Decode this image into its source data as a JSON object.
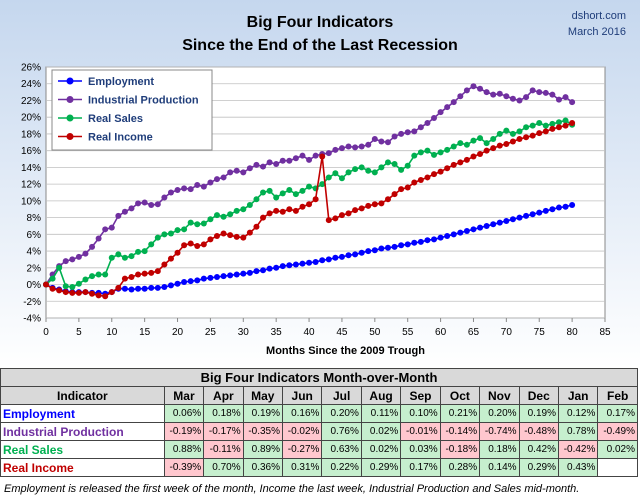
{
  "chart_data": {
    "type": "line",
    "title": "Big Four Indicators",
    "subtitle": "Since the End of the Last Recession",
    "xlabel": "Months Since the 2009 Trough",
    "ylabel": "",
    "xlim": [
      0,
      85
    ],
    "ylim": [
      -4,
      26
    ],
    "x_ticks": [
      "0",
      "5",
      "10",
      "15",
      "20",
      "25",
      "30",
      "35",
      "40",
      "45",
      "50",
      "55",
      "60",
      "65",
      "70",
      "75",
      "80",
      "85"
    ],
    "y_ticks": [
      "-4%",
      "-2%",
      "0%",
      "2%",
      "4%",
      "6%",
      "8%",
      "10%",
      "12%",
      "14%",
      "16%",
      "18%",
      "20%",
      "22%",
      "24%",
      "26%"
    ],
    "legend_position": "top-left",
    "grid": true,
    "series": [
      {
        "name": "Employment",
        "color": "#0000ff",
        "values": [
          0,
          -0.4,
          -0.6,
          -0.8,
          -0.9,
          -0.9,
          -0.9,
          -1.0,
          -1.0,
          -1.1,
          -0.9,
          -0.5,
          -0.5,
          -0.6,
          -0.5,
          -0.5,
          -0.4,
          -0.4,
          -0.3,
          -0.1,
          0.1,
          0.3,
          0.4,
          0.5,
          0.7,
          0.8,
          0.9,
          1.0,
          1.1,
          1.2,
          1.3,
          1.4,
          1.6,
          1.7,
          1.9,
          2.0,
          2.2,
          2.3,
          2.4,
          2.5,
          2.6,
          2.7,
          2.9,
          3.0,
          3.2,
          3.3,
          3.5,
          3.6,
          3.8,
          4.0,
          4.1,
          4.3,
          4.4,
          4.5,
          4.7,
          4.8,
          5.0,
          5.1,
          5.3,
          5.4,
          5.6,
          5.8,
          6.0,
          6.2,
          6.4,
          6.6,
          6.8,
          7.0,
          7.2,
          7.4,
          7.6,
          7.8,
          8.0,
          8.2,
          8.4,
          8.6,
          8.8,
          9.0,
          9.2,
          9.3,
          9.5
        ]
      },
      {
        "name": "Industrial Production",
        "color": "#7030a0",
        "values": [
          0,
          1.2,
          2.2,
          2.8,
          3.0,
          3.3,
          3.7,
          4.5,
          5.5,
          6.6,
          6.8,
          8.2,
          8.7,
          9.1,
          9.7,
          9.8,
          9.5,
          9.6,
          10.4,
          11.0,
          11.3,
          11.5,
          11.4,
          11.9,
          11.7,
          12.2,
          12.6,
          12.8,
          13.4,
          13.6,
          13.4,
          13.9,
          14.3,
          14.1,
          14.6,
          14.4,
          14.8,
          14.8,
          15.1,
          15.4,
          14.9,
          15.4,
          15.6,
          15.7,
          16.1,
          16.3,
          16.5,
          16.4,
          16.5,
          16.7,
          17.4,
          17.1,
          17.0,
          17.7,
          18.0,
          18.2,
          18.3,
          18.8,
          19.3,
          19.9,
          20.6,
          21.2,
          21.8,
          22.5,
          23.2,
          23.7,
          23.4,
          23.0,
          22.7,
          22.8,
          22.5,
          22.2,
          22.0,
          22.4,
          23.2,
          23.0,
          22.9,
          22.7,
          22.1,
          22.4,
          21.8
        ]
      },
      {
        "name": "Real Sales",
        "color": "#00b050",
        "values": [
          0,
          0.7,
          2.0,
          -0.2,
          -0.3,
          0.1,
          0.6,
          1.0,
          1.2,
          1.2,
          3.2,
          3.6,
          3.2,
          3.4,
          3.9,
          4.0,
          4.8,
          5.6,
          6.0,
          6.1,
          6.5,
          6.6,
          7.4,
          7.2,
          7.3,
          7.8,
          8.3,
          8.1,
          8.4,
          8.8,
          9.0,
          9.5,
          10.2,
          11.0,
          11.2,
          10.4,
          10.9,
          11.3,
          10.8,
          11.2,
          11.7,
          11.5,
          12.0,
          12.8,
          13.3,
          12.7,
          13.4,
          13.8,
          14.0,
          13.6,
          13.4,
          14.0,
          14.6,
          14.4,
          13.7,
          14.2,
          15.4,
          15.8,
          16.0,
          15.5,
          15.8,
          16.1,
          16.5,
          16.9,
          16.7,
          17.2,
          17.5,
          16.9,
          17.4,
          18.0,
          18.4,
          18.0,
          18.3,
          18.8,
          19.0,
          19.3,
          19.0,
          19.2,
          19.4,
          19.6,
          19.1
        ]
      },
      {
        "name": "Real Income",
        "color": "#c00000",
        "values": [
          0,
          -0.5,
          -0.7,
          -0.9,
          -1.0,
          -1.0,
          -0.9,
          -1.1,
          -1.3,
          -1.4,
          -0.9,
          -0.4,
          0.7,
          0.9,
          1.2,
          1.3,
          1.4,
          1.6,
          2.4,
          3.1,
          3.8,
          4.7,
          4.9,
          4.6,
          4.8,
          5.4,
          5.8,
          6.1,
          5.9,
          5.7,
          5.6,
          6.2,
          6.9,
          8.0,
          8.5,
          8.8,
          8.7,
          9.0,
          8.8,
          9.3,
          9.6,
          10.2,
          15.3,
          7.7,
          7.9,
          8.3,
          8.5,
          8.9,
          9.1,
          9.4,
          9.6,
          9.7,
          10.2,
          10.8,
          11.4,
          11.6,
          12.2,
          12.5,
          12.8,
          13.2,
          13.5,
          13.9,
          14.3,
          14.6,
          14.9,
          15.3,
          15.6,
          16.0,
          16.3,
          16.6,
          16.8,
          17.1,
          17.4,
          17.6,
          17.8,
          18.1,
          18.3,
          18.6,
          18.8,
          19.0,
          19.3
        ]
      }
    ]
  },
  "source": {
    "name": "dshort.com",
    "date": "March 2016"
  },
  "table": {
    "title": "Big Four Indicators Month-over-Month",
    "header_label": "Indicator",
    "months": [
      "Mar",
      "Apr",
      "May",
      "Jun",
      "Jul",
      "Aug",
      "Sep",
      "Oct",
      "Nov",
      "Dec",
      "Jan",
      "Feb"
    ],
    "rows": [
      {
        "name": "Employment",
        "color": "#0000ff",
        "values": [
          "0.06%",
          "0.18%",
          "0.19%",
          "0.16%",
          "0.20%",
          "0.11%",
          "0.10%",
          "0.21%",
          "0.20%",
          "0.19%",
          "0.12%",
          "0.17%"
        ]
      },
      {
        "name": "Industrial Production",
        "color": "#7030a0",
        "values": [
          "-0.19%",
          "-0.17%",
          "-0.35%",
          "-0.02%",
          "0.76%",
          "0.02%",
          "-0.01%",
          "-0.14%",
          "-0.74%",
          "-0.48%",
          "0.78%",
          "-0.49%"
        ]
      },
      {
        "name": "Real Sales",
        "color": "#00b050",
        "values": [
          "0.88%",
          "-0.11%",
          "0.89%",
          "-0.27%",
          "0.63%",
          "0.02%",
          "0.03%",
          "-0.18%",
          "0.18%",
          "0.42%",
          "-0.42%",
          "0.02%"
        ]
      },
      {
        "name": "Real Income",
        "color": "#c00000",
        "values": [
          "-0.39%",
          "0.70%",
          "0.36%",
          "0.31%",
          "0.22%",
          "0.29%",
          "0.17%",
          "0.28%",
          "0.14%",
          "0.29%",
          "0.43%",
          ""
        ]
      }
    ]
  },
  "footnote": "Employment is released the first week of the month, Income the last week, Industrial Production and Sales mid-month."
}
